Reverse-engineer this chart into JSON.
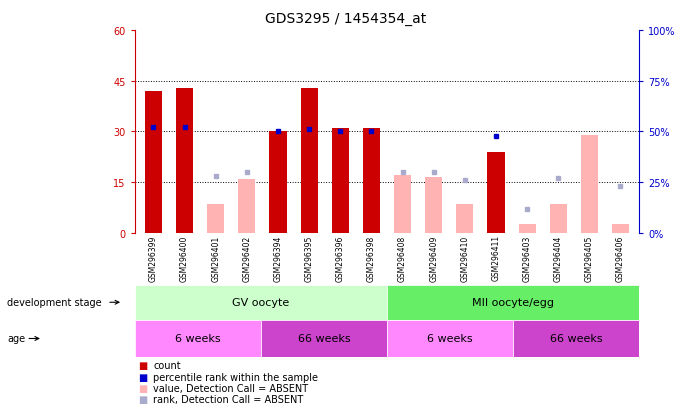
{
  "title": "GDS3295 / 1454354_at",
  "samples": [
    "GSM296399",
    "GSM296400",
    "GSM296401",
    "GSM296402",
    "GSM296394",
    "GSM296395",
    "GSM296396",
    "GSM296398",
    "GSM296408",
    "GSM296409",
    "GSM296410",
    "GSM296411",
    "GSM296403",
    "GSM296404",
    "GSM296405",
    "GSM296406"
  ],
  "count_present": [
    42,
    43,
    null,
    null,
    30,
    43,
    31,
    31,
    null,
    null,
    null,
    24,
    null,
    null,
    null,
    null
  ],
  "rank_present": [
    52,
    52,
    null,
    null,
    50,
    51,
    50,
    50,
    null,
    null,
    null,
    48,
    null,
    null,
    null,
    null
  ],
  "value_absent": [
    null,
    null,
    8.5,
    16,
    null,
    null,
    null,
    null,
    17,
    16.5,
    8.5,
    null,
    2.5,
    8.5,
    29,
    2.5
  ],
  "rank_absent": [
    null,
    null,
    28,
    30,
    null,
    null,
    null,
    null,
    30,
    30,
    26,
    null,
    12,
    27,
    null,
    23
  ],
  "left_ylim": [
    0,
    60
  ],
  "right_ylim": [
    0,
    100
  ],
  "left_yticks": [
    0,
    15,
    30,
    45,
    60
  ],
  "right_yticks": [
    0,
    25,
    50,
    75,
    100
  ],
  "bar_color_present": "#cc0000",
  "bar_color_absent_value": "#ffb3b3",
  "dot_color_present": "#0000cc",
  "dot_color_absent_rank": "#aaaacc",
  "left_tick_color": "#cc0000",
  "right_tick_color": "#0000cc",
  "dev_stage_gv_label": "GV oocyte",
  "dev_stage_mii_label": "MII oocyte/egg",
  "dev_stage_gv_color": "#ccffcc",
  "dev_stage_mii_color": "#66ee66",
  "age_6w_color": "#ff88ff",
  "age_66w_color": "#cc44cc",
  "age_6w_label": "6 weeks",
  "age_66w_label": "66 weeks",
  "legend_items": [
    {
      "label": "count",
      "color": "#cc0000"
    },
    {
      "label": "percentile rank within the sample",
      "color": "#0000cc"
    },
    {
      "label": "value, Detection Call = ABSENT",
      "color": "#ffb3b3"
    },
    {
      "label": "rank, Detection Call = ABSENT",
      "color": "#aaaacc"
    }
  ]
}
